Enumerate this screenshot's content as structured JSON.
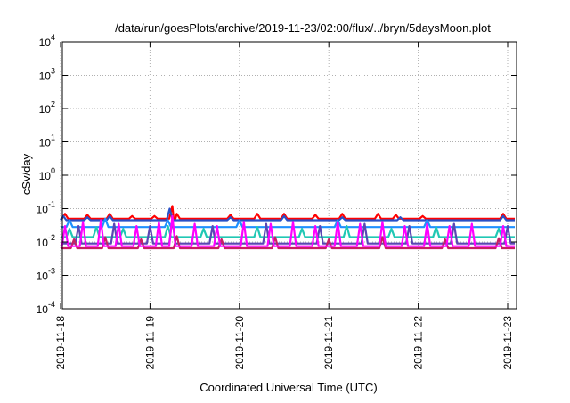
{
  "chart_data": {
    "type": "line",
    "title": "/data/run/goesPlots/archive/2019-11-23/02:00/flux/../bryn/5daysMoon.plot",
    "xlabel": "Coordinated Universal Time (UTC)",
    "ylabel": "cSv/day",
    "yscale": "log",
    "ylim": [
      0.0001,
      10000
    ],
    "xlim": [
      "2019-11-18",
      "2019-11-23 02:00"
    ],
    "grid": true,
    "legend": "none",
    "yticks": [
      {
        "value": 0.0001,
        "base": "10",
        "exp": "-4"
      },
      {
        "value": 0.001,
        "base": "10",
        "exp": "-3"
      },
      {
        "value": 0.01,
        "base": "10",
        "exp": "-2"
      },
      {
        "value": 0.1,
        "base": "10",
        "exp": "-1"
      },
      {
        "value": 1,
        "base": "10",
        "exp": "0"
      },
      {
        "value": 10,
        "base": "10",
        "exp": "1"
      },
      {
        "value": 100,
        "base": "10",
        "exp": "2"
      },
      {
        "value": 1000,
        "base": "10",
        "exp": "3"
      },
      {
        "value": 10000,
        "base": "10",
        "exp": "4"
      }
    ],
    "xticks": [
      "2019-11-18",
      "2019-11-19",
      "2019-11-20",
      "2019-11-21",
      "2019-11-22",
      "2019-11-23"
    ],
    "series": [
      {
        "color": "#ff0000",
        "baseline": 0.05,
        "spikes": [
          {
            "t": 0.05,
            "v": 0.07
          },
          {
            "t": 0.3,
            "v": 0.065
          },
          {
            "t": 0.55,
            "v": 0.07
          },
          {
            "t": 0.8,
            "v": 0.06
          },
          {
            "t": 1.05,
            "v": 0.06
          },
          {
            "t": 1.25,
            "v": 0.12
          },
          {
            "t": 1.3,
            "v": 0.07
          },
          {
            "t": 1.9,
            "v": 0.065
          },
          {
            "t": 2.2,
            "v": 0.07
          },
          {
            "t": 2.5,
            "v": 0.07
          },
          {
            "t": 2.85,
            "v": 0.065
          },
          {
            "t": 3.15,
            "v": 0.07
          },
          {
            "t": 3.55,
            "v": 0.07
          },
          {
            "t": 3.75,
            "v": 0.065
          },
          {
            "t": 4.05,
            "v": 0.06
          },
          {
            "t": 4.95,
            "v": 0.07
          }
        ]
      },
      {
        "color": "#2850c8",
        "baseline": 0.045,
        "spikes": [
          {
            "t": 0.03,
            "v": 0.06
          },
          {
            "t": 0.3,
            "v": 0.055
          },
          {
            "t": 0.55,
            "v": 0.06
          },
          {
            "t": 1.22,
            "v": 0.1
          },
          {
            "t": 1.9,
            "v": 0.055
          },
          {
            "t": 2.5,
            "v": 0.06
          },
          {
            "t": 3.15,
            "v": 0.055
          },
          {
            "t": 3.8,
            "v": 0.055
          },
          {
            "t": 4.95,
            "v": 0.06
          }
        ]
      },
      {
        "color": "#1e90ff",
        "baseline": 0.028,
        "spikes": [
          {
            "t": 0.1,
            "v": 0.045
          },
          {
            "t": 0.5,
            "v": 0.05
          },
          {
            "t": 1.2,
            "v": 0.045
          },
          {
            "t": 2.0,
            "v": 0.045
          },
          {
            "t": 3.1,
            "v": 0.045
          },
          {
            "t": 4.1,
            "v": 0.045
          }
        ]
      },
      {
        "color": "#20c8b4",
        "baseline": 0.014,
        "spikes": [
          {
            "t": 0.1,
            "v": 0.025
          },
          {
            "t": 0.4,
            "v": 0.028
          },
          {
            "t": 0.7,
            "v": 0.025
          },
          {
            "t": 1.2,
            "v": 0.03
          },
          {
            "t": 1.6,
            "v": 0.025
          },
          {
            "t": 2.2,
            "v": 0.028
          },
          {
            "t": 2.7,
            "v": 0.025
          },
          {
            "t": 3.2,
            "v": 0.03
          },
          {
            "t": 3.7,
            "v": 0.025
          },
          {
            "t": 4.2,
            "v": 0.028
          },
          {
            "t": 4.9,
            "v": 0.025
          }
        ]
      },
      {
        "color": "#5a46b4",
        "baseline": 0.009,
        "spikes": [
          {
            "t": 0.2,
            "v": 0.03
          },
          {
            "t": 0.6,
            "v": 0.035
          },
          {
            "t": 1.0,
            "v": 0.03
          },
          {
            "t": 1.25,
            "v": 0.05
          },
          {
            "t": 1.7,
            "v": 0.03
          },
          {
            "t": 2.3,
            "v": 0.035
          },
          {
            "t": 2.9,
            "v": 0.03
          },
          {
            "t": 3.4,
            "v": 0.035
          },
          {
            "t": 3.9,
            "v": 0.03
          },
          {
            "t": 4.4,
            "v": 0.035
          },
          {
            "t": 5.0,
            "v": 0.03
          }
        ]
      },
      {
        "color": "#c81e64",
        "baseline": 0.0065,
        "spikes": [
          {
            "t": 0.15,
            "v": 0.012
          },
          {
            "t": 0.5,
            "v": 0.014
          },
          {
            "t": 0.9,
            "v": 0.012
          },
          {
            "t": 1.3,
            "v": 0.015
          },
          {
            "t": 1.8,
            "v": 0.012
          },
          {
            "t": 2.4,
            "v": 0.014
          },
          {
            "t": 3.0,
            "v": 0.012
          },
          {
            "t": 3.6,
            "v": 0.014
          },
          {
            "t": 4.3,
            "v": 0.012
          },
          {
            "t": 4.9,
            "v": 0.013
          }
        ]
      },
      {
        "color": "#ff00ff",
        "baseline": 0.0075,
        "spikes": [
          {
            "t": 0.05,
            "v": 0.03
          },
          {
            "t": 0.25,
            "v": 0.04
          },
          {
            "t": 0.45,
            "v": 0.045
          },
          {
            "t": 0.65,
            "v": 0.035
          },
          {
            "t": 0.85,
            "v": 0.03
          },
          {
            "t": 1.1,
            "v": 0.04
          },
          {
            "t": 1.25,
            "v": 0.06
          },
          {
            "t": 1.5,
            "v": 0.035
          },
          {
            "t": 1.75,
            "v": 0.03
          },
          {
            "t": 2.05,
            "v": 0.04
          },
          {
            "t": 2.35,
            "v": 0.035
          },
          {
            "t": 2.6,
            "v": 0.04
          },
          {
            "t": 2.85,
            "v": 0.03
          },
          {
            "t": 3.1,
            "v": 0.04
          },
          {
            "t": 3.35,
            "v": 0.035
          },
          {
            "t": 3.6,
            "v": 0.04
          },
          {
            "t": 3.85,
            "v": 0.03
          },
          {
            "t": 4.1,
            "v": 0.035
          },
          {
            "t": 4.35,
            "v": 0.03
          },
          {
            "t": 4.6,
            "v": 0.035
          },
          {
            "t": 4.95,
            "v": 0.03
          }
        ]
      }
    ]
  }
}
